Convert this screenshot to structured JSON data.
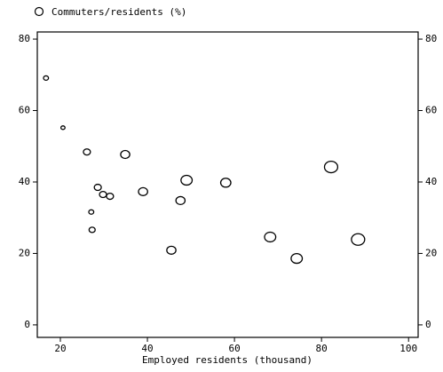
{
  "chart_data": {
    "type": "scatter",
    "legend": "Commuters/residents (%)",
    "xlabel": "Employed residents (thousand)",
    "x": [
      16.7,
      20.6,
      26.1,
      34.9,
      28.6,
      29.8,
      31.4,
      27.1,
      27.3,
      39.0,
      49.0,
      47.6,
      45.5,
      58.0,
      68.2,
      74.3,
      82.2,
      88.4
    ],
    "values": [
      69.1,
      55.2,
      48.4,
      47.7,
      38.5,
      36.5,
      36.0,
      31.6,
      26.6,
      37.3,
      40.5,
      34.8,
      20.9,
      39.8,
      24.6,
      18.6,
      44.2,
      23.9
    ],
    "sizes": [
      6,
      4,
      12,
      20,
      12,
      12,
      12,
      6,
      9,
      20,
      30,
      20,
      20,
      25,
      30,
      30,
      42,
      42
    ],
    "color": "#000000",
    "xlim": [
      14.7,
      102.2
    ],
    "xticks": [
      20,
      40,
      60,
      80,
      100
    ],
    "ylim": [
      -3.5,
      82
    ],
    "yticks": [
      0,
      20,
      40,
      60,
      80
    ]
  }
}
